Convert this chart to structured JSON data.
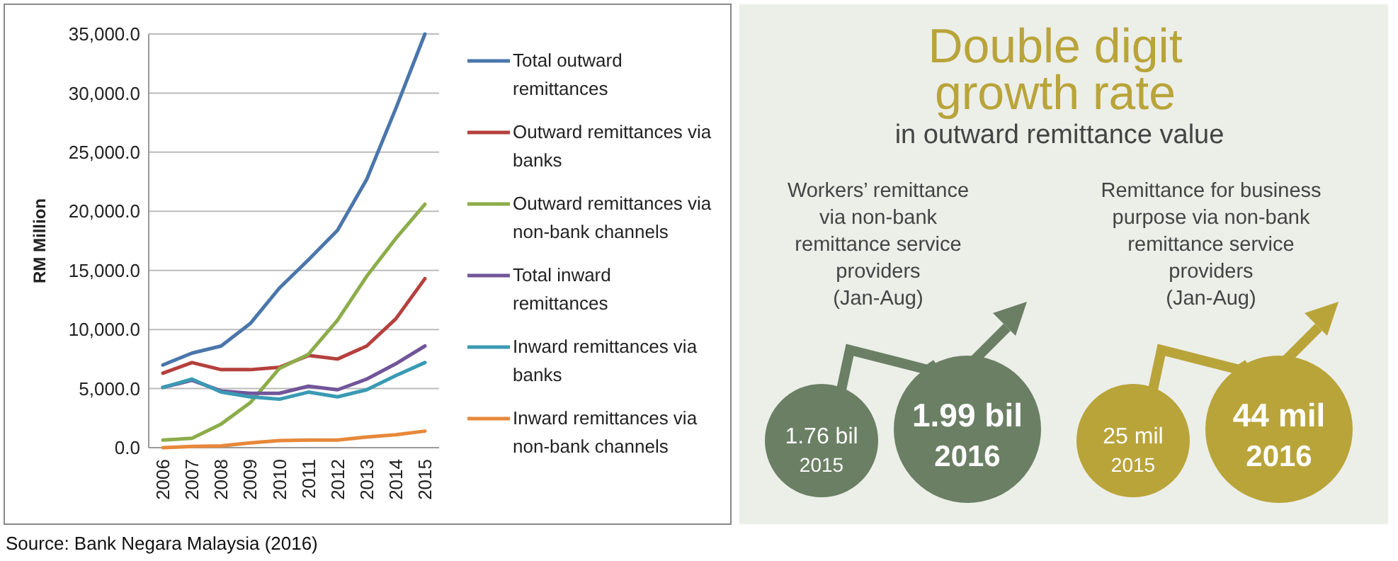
{
  "chart_data": [
    {
      "type": "line",
      "ylabel": "RM Million",
      "categories": [
        "2006",
        "2007",
        "2008",
        "2009",
        "2010",
        "2011",
        "2012",
        "2013",
        "2014",
        "2015"
      ],
      "ylim": [
        0,
        35000
      ],
      "yticks": [
        {
          "value": 0,
          "label": "0.0"
        },
        {
          "value": 5000,
          "label": "5,000.0"
        },
        {
          "value": 10000,
          "label": "10,000.0"
        },
        {
          "value": 15000,
          "label": "15,000.0"
        },
        {
          "value": 20000,
          "label": "20,000.0"
        },
        {
          "value": 25000,
          "label": "25,000.0"
        },
        {
          "value": 30000,
          "label": "30,000.0"
        },
        {
          "value": 35000,
          "label": "35,000.0"
        }
      ],
      "grid": "y",
      "legend": "right",
      "marker": "none",
      "series": [
        {
          "name": "Total outward remittances",
          "color": "#4a76ab",
          "values": [
            7000,
            8000,
            8600,
            10500,
            13500,
            15900,
            18400,
            22700,
            28700,
            35000
          ]
        },
        {
          "name": "Outward remittances via banks",
          "color": "#b5403d",
          "values": [
            6300,
            7200,
            6600,
            6600,
            6800,
            7800,
            7500,
            8600,
            10900,
            14300
          ]
        },
        {
          "name": "Outward remittances via non-bank channels",
          "color": "#8cad4a",
          "values": [
            640,
            800,
            2000,
            3800,
            6700,
            7900,
            10800,
            14500,
            17700,
            20600
          ]
        },
        {
          "name": "Total inward remittances",
          "color": "#71559a",
          "values": [
            5100,
            5700,
            4800,
            4600,
            4600,
            5200,
            4900,
            5800,
            7100,
            8600
          ]
        },
        {
          "name": "Inward remittances via banks",
          "color": "#3a9ab4",
          "values": [
            5100,
            5800,
            4700,
            4300,
            4100,
            4700,
            4300,
            4900,
            6100,
            7200
          ]
        },
        {
          "name": "Inward remittances via non-bank channels",
          "color": "#e7883a",
          "values": [
            0,
            100,
            150,
            400,
            600,
            640,
            650,
            900,
            1100,
            1400
          ]
        }
      ],
      "annotations": [
        "Source: Bank Negara Malaysia (2016)"
      ]
    },
    {
      "type": "other",
      "title": "Double digit growth rate",
      "subtitle": "in outward remittance value",
      "colors": [
        "#6a7f64",
        "#b9a43a"
      ],
      "annotations": [
        "Workers’ remittance via non-bank remittance service providers",
        "(Jan-Aug)",
        "1.76 bil",
        "2015",
        "1.99 bil",
        "2016",
        "Remittance for business purpose via non-bank remittance service providers",
        "(Jan-Aug)",
        "25 mil",
        "2015",
        "44 mil",
        "2016"
      ]
    }
  ]
}
